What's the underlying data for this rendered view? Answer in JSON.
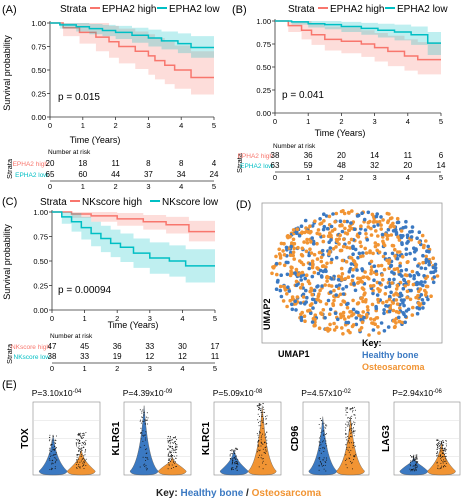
{
  "chart_data": [
    {
      "panel": "(A)",
      "type": "line",
      "legend": {
        "title": "Strata",
        "entries": [
          {
            "name": "EPHA2 high",
            "color": "#f8766d"
          },
          {
            "name": "EPHA2 low",
            "color": "#00bfc4"
          }
        ]
      },
      "ylabel": "Survival probability",
      "xlabel": "Time (Years)",
      "ylim": [
        0,
        1
      ],
      "xlim": [
        0,
        5
      ],
      "yticks": [
        "0.00",
        "0.25",
        "0.50",
        "0.75",
        "1.00"
      ],
      "xticks": [
        "0",
        "1",
        "2",
        "3",
        "4",
        "5"
      ],
      "pvalue": "p = 0.015",
      "series": [
        {
          "name": "EPHA2 high",
          "color": "#f8766d",
          "x": [
            0,
            0.4,
            0.9,
            1.4,
            1.8,
            2.1,
            2.6,
            3.0,
            3.2,
            3.5,
            3.8,
            4.3,
            5.0
          ],
          "y": [
            1.0,
            0.95,
            0.9,
            0.85,
            0.8,
            0.75,
            0.7,
            0.65,
            0.6,
            0.55,
            0.5,
            0.42,
            0.42
          ],
          "upper": [
            1.0,
            1.0,
            1.0,
            1.0,
            0.97,
            0.94,
            0.91,
            0.88,
            0.84,
            0.8,
            0.76,
            0.7,
            0.7
          ],
          "lower": [
            1.0,
            0.86,
            0.78,
            0.7,
            0.63,
            0.57,
            0.51,
            0.45,
            0.4,
            0.35,
            0.3,
            0.24,
            0.24
          ]
        },
        {
          "name": "EPHA2 low",
          "color": "#00bfc4",
          "x": [
            0,
            0.3,
            0.8,
            1.2,
            1.6,
            2.0,
            2.5,
            3.0,
            3.4,
            3.9,
            4.3,
            5.0
          ],
          "y": [
            1.0,
            0.98,
            0.96,
            0.94,
            0.92,
            0.9,
            0.87,
            0.84,
            0.81,
            0.78,
            0.74,
            0.74
          ],
          "upper": [
            1.0,
            1.0,
            1.0,
            0.99,
            0.98,
            0.97,
            0.95,
            0.93,
            0.91,
            0.89,
            0.86,
            0.86
          ],
          "lower": [
            1.0,
            0.94,
            0.91,
            0.88,
            0.86,
            0.83,
            0.79,
            0.75,
            0.72,
            0.68,
            0.63,
            0.63
          ]
        }
      ],
      "risk_table": {
        "title": "Number at risk",
        "strata_label": "Strata",
        "rows": [
          {
            "name": "EPHA2 high",
            "color": "#f8766d",
            "values": [
              "20",
              "18",
              "11",
              "8",
              "8",
              "4"
            ]
          },
          {
            "name": "EPHA2 low",
            "color": "#00bfc4",
            "values": [
              "65",
              "60",
              "44",
              "37",
              "34",
              "24"
            ]
          }
        ],
        "xticks": [
          "0",
          "1",
          "2",
          "3",
          "4",
          "5"
        ],
        "xlabel": "Time (Years)"
      }
    },
    {
      "panel": "(B)",
      "type": "line",
      "legend": {
        "title": "Strata",
        "entries": [
          {
            "name": "EPHA2 high",
            "color": "#f8766d"
          },
          {
            "name": "EPHA2 low",
            "color": "#00bfc4"
          }
        ]
      },
      "ylabel": "",
      "xlabel": "Time (Years)",
      "ylim": [
        0,
        1
      ],
      "xlim": [
        0,
        5
      ],
      "yticks": [
        "0.00",
        "0.25",
        "0.50",
        "0.75",
        "1.00"
      ],
      "xticks": [
        "0",
        "1",
        "2",
        "3",
        "4",
        "5"
      ],
      "pvalue": "p = 0.041",
      "series": [
        {
          "name": "EPHA2 high",
          "color": "#f8766d",
          "x": [
            0,
            0.4,
            0.8,
            1.1,
            1.5,
            2.0,
            2.6,
            3.0,
            3.4,
            3.9,
            4.3,
            5.0
          ],
          "y": [
            1.0,
            0.95,
            0.9,
            0.85,
            0.8,
            0.78,
            0.75,
            0.71,
            0.67,
            0.62,
            0.58,
            0.58
          ],
          "upper": [
            1.0,
            1.0,
            1.0,
            0.98,
            0.94,
            0.93,
            0.9,
            0.87,
            0.84,
            0.8,
            0.77,
            0.77
          ],
          "lower": [
            1.0,
            0.88,
            0.8,
            0.74,
            0.68,
            0.65,
            0.61,
            0.56,
            0.51,
            0.46,
            0.42,
            0.42
          ]
        },
        {
          "name": "EPHA2 low",
          "color": "#00bfc4",
          "x": [
            0,
            0.5,
            1.0,
            1.5,
            2.0,
            2.6,
            3.1,
            3.6,
            4.1,
            4.6,
            5.0
          ],
          "y": [
            1.0,
            0.99,
            0.97,
            0.96,
            0.94,
            0.92,
            0.9,
            0.88,
            0.85,
            0.76,
            0.76
          ],
          "upper": [
            1.0,
            1.0,
            1.0,
            1.0,
            0.99,
            0.98,
            0.97,
            0.96,
            0.94,
            0.88,
            0.88
          ],
          "lower": [
            1.0,
            0.96,
            0.93,
            0.91,
            0.88,
            0.85,
            0.82,
            0.79,
            0.74,
            0.63,
            0.63
          ]
        }
      ],
      "risk_table": {
        "title": "Number at risk",
        "strata_label": "Strata",
        "rows": [
          {
            "name": "EPHA2 high",
            "color": "#f8766d",
            "values": [
              "38",
              "36",
              "20",
              "14",
              "11",
              "6"
            ]
          },
          {
            "name": "EPHA2 low",
            "color": "#00bfc4",
            "values": [
              "63",
              "59",
              "48",
              "32",
              "20",
              "14"
            ]
          }
        ],
        "xticks": [
          "0",
          "1",
          "2",
          "3",
          "4",
          "5"
        ],
        "xlabel": "Time (Years)"
      }
    },
    {
      "panel": "(C)",
      "type": "line",
      "legend": {
        "title": "Strata",
        "entries": [
          {
            "name": "NKscore high",
            "color": "#f8766d"
          },
          {
            "name": "NKscore low",
            "color": "#00bfc4"
          }
        ]
      },
      "ylabel": "Survival probability",
      "xlabel": "Time (Years)",
      "ylim": [
        0,
        1
      ],
      "xlim": [
        0,
        5
      ],
      "yticks": [
        "0.00",
        "0.25",
        "0.50",
        "0.75",
        "1.00"
      ],
      "xticks": [
        "0",
        "1",
        "2",
        "3",
        "4",
        "5"
      ],
      "pvalue": "p = 0.00094",
      "series": [
        {
          "name": "NKscore high",
          "color": "#f8766d",
          "x": [
            0,
            0.6,
            1.2,
            2.0,
            2.8,
            3.5,
            4.2,
            5.0
          ],
          "y": [
            1.0,
            0.98,
            0.96,
            0.93,
            0.9,
            0.87,
            0.8,
            0.8
          ],
          "upper": [
            1.0,
            1.0,
            1.0,
            0.99,
            0.97,
            0.95,
            0.91,
            0.91
          ],
          "lower": [
            1.0,
            0.94,
            0.9,
            0.86,
            0.82,
            0.78,
            0.7,
            0.7
          ]
        },
        {
          "name": "NKscore low",
          "color": "#00bfc4",
          "x": [
            0,
            0.3,
            0.6,
            0.9,
            1.2,
            1.5,
            1.8,
            2.1,
            2.5,
            3.0,
            3.6,
            4.1,
            5.0
          ],
          "y": [
            1.0,
            0.95,
            0.9,
            0.84,
            0.78,
            0.73,
            0.68,
            0.64,
            0.58,
            0.53,
            0.5,
            0.45,
            0.45
          ],
          "upper": [
            1.0,
            1.0,
            0.99,
            0.95,
            0.9,
            0.86,
            0.82,
            0.78,
            0.73,
            0.69,
            0.66,
            0.62,
            0.62
          ],
          "lower": [
            1.0,
            0.88,
            0.8,
            0.72,
            0.65,
            0.59,
            0.54,
            0.49,
            0.43,
            0.37,
            0.34,
            0.28,
            0.28
          ]
        }
      ],
      "risk_table": {
        "title": "Number at risk",
        "strata_label": "Strata",
        "rows": [
          {
            "name": "NKscore high",
            "color": "#f8766d",
            "values": [
              "47",
              "45",
              "36",
              "33",
              "30",
              "17"
            ]
          },
          {
            "name": "NKscore low",
            "color": "#00bfc4",
            "values": [
              "38",
              "33",
              "19",
              "12",
              "12",
              "11"
            ]
          }
        ],
        "xticks": [
          "0",
          "1",
          "2",
          "3",
          "4",
          "5"
        ],
        "xlabel": "Time (Years)"
      }
    },
    {
      "panel": "(D)",
      "type": "scatter",
      "xlabel": "UMAP1",
      "ylabel": "UMAP2",
      "key_title": "Key:",
      "series": [
        {
          "name": "Healthy bone",
          "color": "#3b79c2"
        },
        {
          "name": "Osteosarcoma",
          "color": "#f19433"
        }
      ]
    },
    {
      "panel": "(E)",
      "type": "violin",
      "colors": {
        "healthy": "#3b79c2",
        "osteo": "#f19433"
      },
      "genes": [
        {
          "name": "TOX",
          "p": "P=3.10x10",
          "exp": "-04"
        },
        {
          "name": "KLRG1",
          "p": "P=4.39x10",
          "exp": "-09"
        },
        {
          "name": "KLRC1",
          "p": "P=5.09x10",
          "exp": "-08"
        },
        {
          "name": "CD96",
          "p": "P=4.57x10",
          "exp": "-02"
        },
        {
          "name": "LAG3",
          "p": "P=2.94x10",
          "exp": "-06"
        }
      ],
      "key": {
        "title": "Key:",
        "healthy": "Healthy bone",
        "sep": " / ",
        "osteo": "Osteosarcoma"
      }
    }
  ]
}
